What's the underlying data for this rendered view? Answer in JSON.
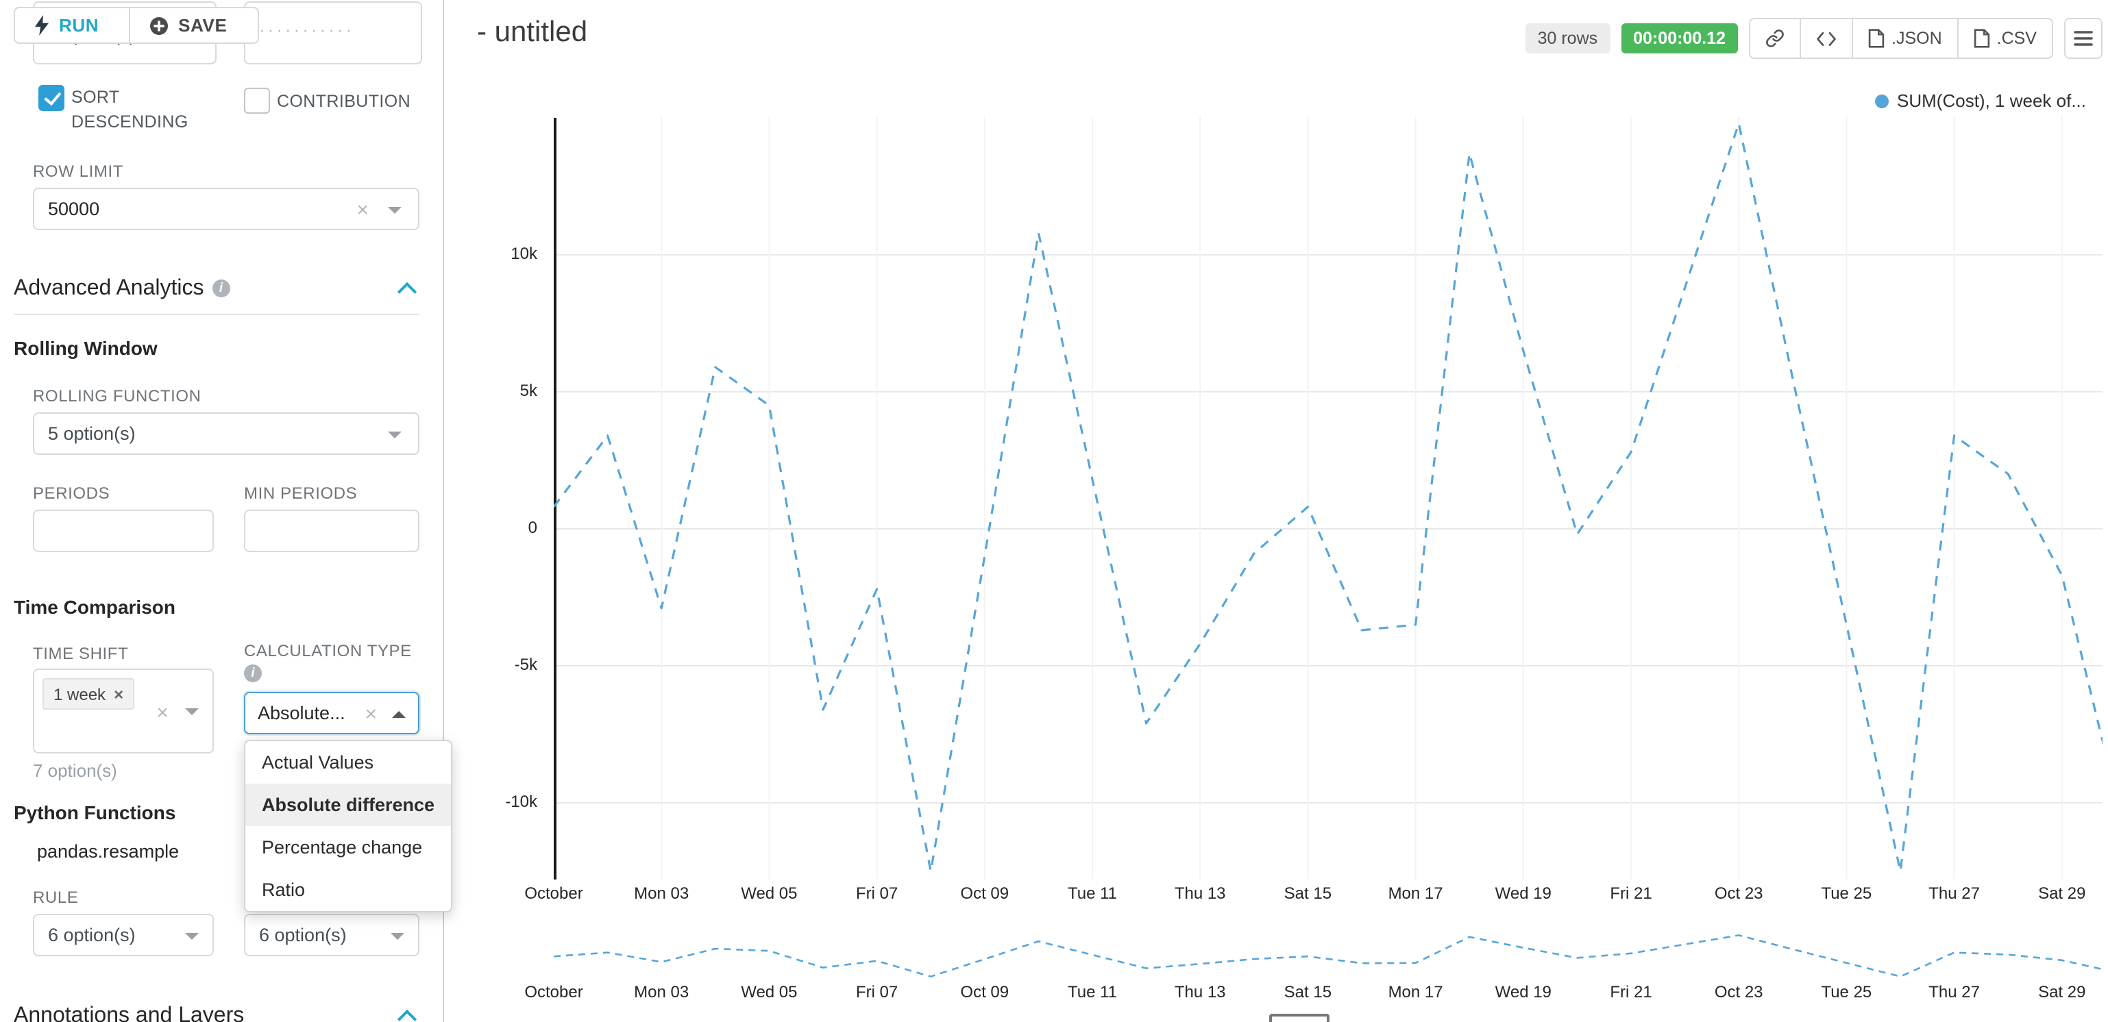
{
  "colors": {
    "accent_teal": "#20a7c9",
    "checkbox_blue": "#2e9fd6",
    "line_blue": "#56a5d8",
    "timer_green": "#4bb85c",
    "focus_border": "#4b9fd4"
  },
  "toolbar": {
    "run_label": "RUN",
    "save_label": "SAVE"
  },
  "sidebar": {
    "truncated_left_value": "7 option(s)",
    "truncated_right_value": "···········",
    "sort_descending_label": "SORT DESCENDING",
    "contribution_label": "CONTRIBUTION",
    "row_limit_label": "ROW LIMIT",
    "row_limit_value": "50000",
    "advanced_analytics_title": "Advanced Analytics",
    "rolling_window": {
      "title": "Rolling Window",
      "rolling_function_label": "ROLLING FUNCTION",
      "rolling_function_value": "5 option(s)",
      "periods_label": "PERIODS",
      "min_periods_label": "MIN PERIODS"
    },
    "time_comparison": {
      "title": "Time Comparison",
      "time_shift_label": "TIME SHIFT",
      "time_shift_tag": "1 week",
      "time_shift_hint": "7 option(s)",
      "calculation_type_label": "CALCULATION TYPE",
      "calculation_type_value": "Absolute...",
      "dropdown_options": [
        "Actual Values",
        "Absolute difference",
        "Percentage change",
        "Ratio"
      ],
      "dropdown_selected": "Absolute difference"
    },
    "python_functions": {
      "title": "Python Functions",
      "item": "pandas.resample",
      "rule_label": "RULE",
      "rule_value_1": "6 option(s)",
      "rule_value_2": "6 option(s)"
    },
    "annotations_title": "Annotations and Layers"
  },
  "header": {
    "title": "- untitled",
    "rows_badge": "30 rows",
    "timer_badge": "00:00:00.12",
    "json_label": ".JSON",
    "csv_label": ".CSV"
  },
  "legend_label": "SUM(Cost), 1 week of...",
  "chart_data": {
    "type": "line",
    "title": "- untitled",
    "series": [
      {
        "name": "SUM(Cost), 1 week offset",
        "line_style": "dashed",
        "color": "#56a5d8",
        "values": [
          800,
          3400,
          -2900,
          5900,
          4500,
          -6600,
          -2200,
          -12500,
          -1000,
          10800,
          1800,
          -7100,
          -4200,
          -900,
          800,
          -3700,
          -3500,
          13700,
          6500,
          -200,
          2800,
          8800,
          14800,
          5500,
          -3500,
          -12500,
          3400,
          2000,
          -1700,
          -9700
        ]
      }
    ],
    "x_tick_labels": [
      "October",
      "Mon 03",
      "Wed 05",
      "Fri 07",
      "Oct 09",
      "Tue 11",
      "Thu 13",
      "Sat 15",
      "Mon 17",
      "Wed 19",
      "Fri 21",
      "Oct 23",
      "Tue 25",
      "Thu 27",
      "Sat 29"
    ],
    "points_per_tick": 2,
    "y_tick_labels": [
      "10k",
      "5k",
      "0",
      "-5k",
      "-10k"
    ],
    "y_tick_values": [
      10000,
      5000,
      0,
      -5000,
      -10000
    ],
    "ylim": [
      -12950,
      15050
    ],
    "grid": true,
    "legend_position": "top-right",
    "has_range_selector": true
  }
}
